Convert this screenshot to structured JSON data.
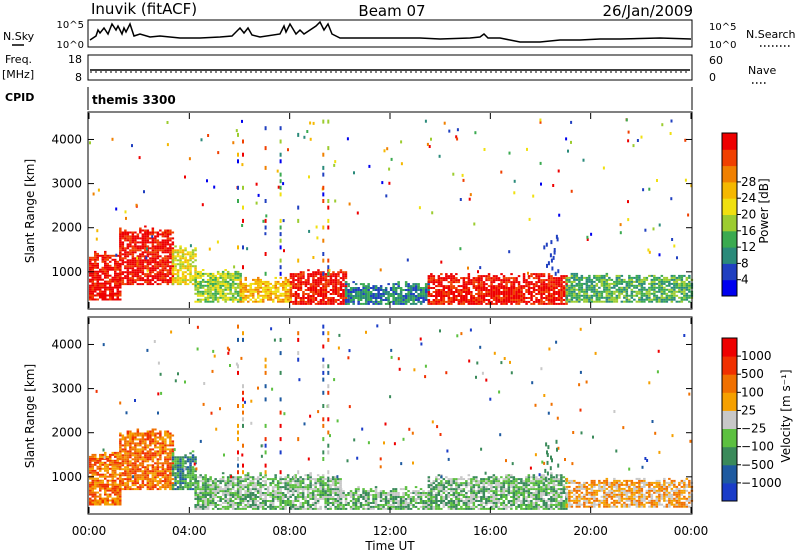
{
  "header": {
    "station": "Inuvik (fitACF)",
    "beam": "Beam 07",
    "date": "26/Jan/2009"
  },
  "panels": {
    "nsky": {
      "left_label": "N.Sky",
      "left_ticks": [
        "10^5",
        "10^0"
      ],
      "right_label": "N.Search",
      "right_ticks": [
        "10^5",
        "10^0"
      ]
    },
    "freq": {
      "left_label_1": "Freq.",
      "left_label_2": "[MHz]",
      "left_ticks": [
        "18",
        "8"
      ],
      "right_label": "Nave",
      "right_ticks": [
        "60",
        "0"
      ]
    },
    "cpid": {
      "label": "CPID",
      "value": "themis 3300"
    }
  },
  "chart_data": [
    {
      "type": "heatmap",
      "name": "Power",
      "ylabel": "Slant Range [km]",
      "ylim": [
        180,
        4600
      ],
      "yticks": [
        "1000",
        "2000",
        "3000",
        "4000"
      ],
      "xlim_hours": [
        0,
        24
      ],
      "colorbar": {
        "label": "Power [dB]",
        "ticks": [
          "4",
          "8",
          "12",
          "16",
          "20",
          "24",
          "28"
        ],
        "colors": [
          "#0000ee",
          "#2040c0",
          "#2a8a7a",
          "#3aaa50",
          "#9ccc30",
          "#f0e010",
          "#f5b800",
          "#f08000",
          "#f04000",
          "#ee0000"
        ]
      },
      "regions": [
        {
          "t0": 0.0,
          "t1": 1.2,
          "r0": 350,
          "r1": 1400,
          "level": 9
        },
        {
          "t0": 1.2,
          "t1": 3.3,
          "r0": 700,
          "r1": 1950,
          "level": 9
        },
        {
          "t0": 3.3,
          "t1": 4.2,
          "r0": 700,
          "r1": 1500,
          "level": 5
        },
        {
          "t0": 4.2,
          "t1": 6.0,
          "r0": 300,
          "r1": 1000,
          "level": 4
        },
        {
          "t0": 6.0,
          "t1": 8.0,
          "r0": 300,
          "r1": 800,
          "level": 6
        },
        {
          "t0": 8.0,
          "t1": 10.2,
          "r0": 250,
          "r1": 1000,
          "level": 9
        },
        {
          "t0": 10.2,
          "t1": 13.5,
          "r0": 250,
          "r1": 700,
          "level": 2
        },
        {
          "t0": 13.5,
          "t1": 15.5,
          "r0": 250,
          "r1": 900,
          "level": 9
        },
        {
          "t0": 15.5,
          "t1": 19.0,
          "r0": 250,
          "r1": 900,
          "level": 9
        },
        {
          "t0": 19.0,
          "t1": 24.0,
          "r0": 300,
          "r1": 900,
          "level": 3
        }
      ]
    },
    {
      "type": "heatmap",
      "name": "Velocity",
      "ylabel": "Slant Range [km]",
      "ylim": [
        180,
        4600
      ],
      "yticks": [
        "1000",
        "2000",
        "3000",
        "4000"
      ],
      "xlim_hours": [
        0,
        24
      ],
      "xticks": [
        "00:00",
        "04:00",
        "08:00",
        "12:00",
        "16:00",
        "20:00",
        "00:00"
      ],
      "xlabel": "Time UT",
      "colorbar": {
        "label": "Velocity [m s⁻¹]",
        "ticks": [
          "1000",
          "500",
          "100",
          "25",
          "−25",
          "−100",
          "−500",
          "−1000"
        ],
        "colors": [
          "#1a3cc8",
          "#1e5aa0",
          "#3a8a5a",
          "#5cc040",
          "#c8c8c8",
          "#f5a000",
          "#f07000",
          "#f03000",
          "#ee0000"
        ]
      },
      "regions": [
        {
          "t0": 0.0,
          "t1": 1.2,
          "r0": 350,
          "r1": 1500,
          "level": 6
        },
        {
          "t0": 1.2,
          "t1": 3.3,
          "r0": 700,
          "r1": 2000,
          "level": 6
        },
        {
          "t0": 3.3,
          "t1": 4.2,
          "r0": 700,
          "r1": 1500,
          "level": 2
        },
        {
          "t0": 4.2,
          "t1": 10.0,
          "r0": 250,
          "r1": 1000,
          "level": 3
        },
        {
          "t0": 10.0,
          "t1": 13.5,
          "r0": 250,
          "r1": 700,
          "level": 3
        },
        {
          "t0": 13.5,
          "t1": 19.0,
          "r0": 250,
          "r1": 1000,
          "level": 3
        },
        {
          "t0": 19.0,
          "t1": 24.0,
          "r0": 300,
          "r1": 900,
          "level": 5
        }
      ]
    }
  ]
}
